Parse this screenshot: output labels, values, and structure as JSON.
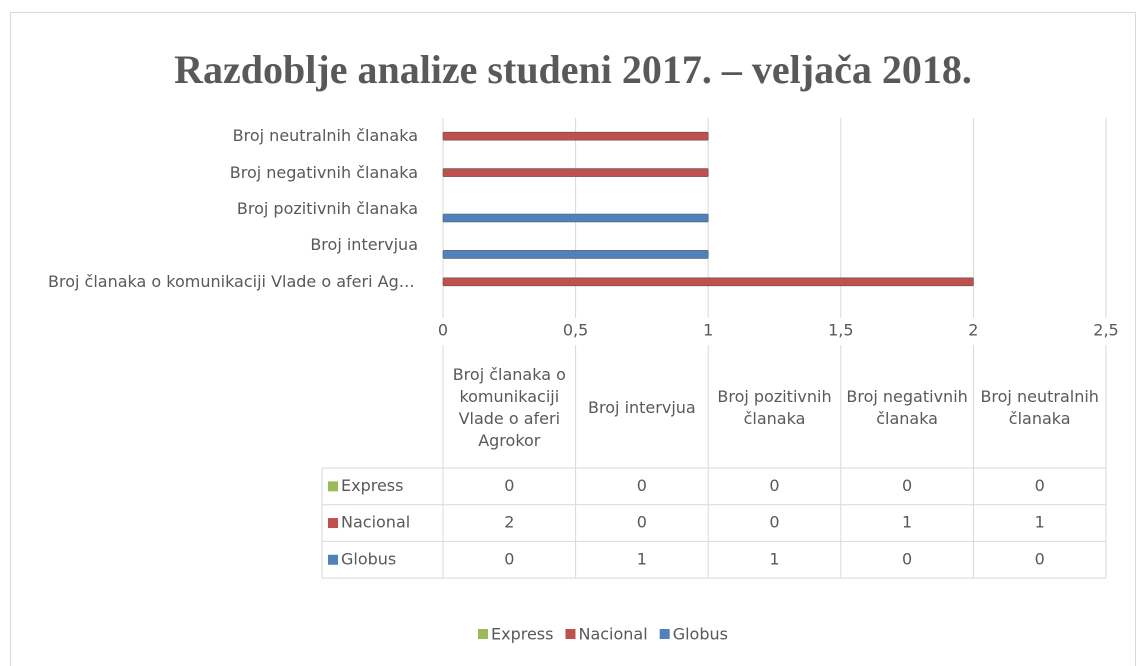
{
  "chart_data": {
    "type": "bar",
    "orientation": "horizontal",
    "title": "Razdoblje analize studeni 2017. – veljača 2018.",
    "categories": [
      "Broj članaka o komunikaciji Vlade o aferi Agrokor",
      "Broj intervjua",
      "Broj pozitivnih članaka",
      "Broj negativnih članaka",
      "Broj neutralnih članaka"
    ],
    "series": [
      {
        "name": "Express",
        "color": "#9bbb59",
        "values": [
          0,
          0,
          0,
          0,
          0
        ]
      },
      {
        "name": "Nacional",
        "color": "#c0504d",
        "values": [
          2,
          0,
          0,
          1,
          1
        ]
      },
      {
        "name": "Globus",
        "color": "#4f81bd",
        "values": [
          0,
          1,
          1,
          0,
          0
        ]
      }
    ],
    "xlim": [
      0,
      2.5
    ],
    "xticks": [
      0,
      {
        "value": 0.5,
        "label": "0,5"
      },
      1,
      {
        "value": 1.5,
        "label": "1,5"
      },
      2,
      {
        "value": 2.5,
        "label": "2,5"
      }
    ],
    "grid": true,
    "legend": "bottom",
    "data_table": true
  }
}
